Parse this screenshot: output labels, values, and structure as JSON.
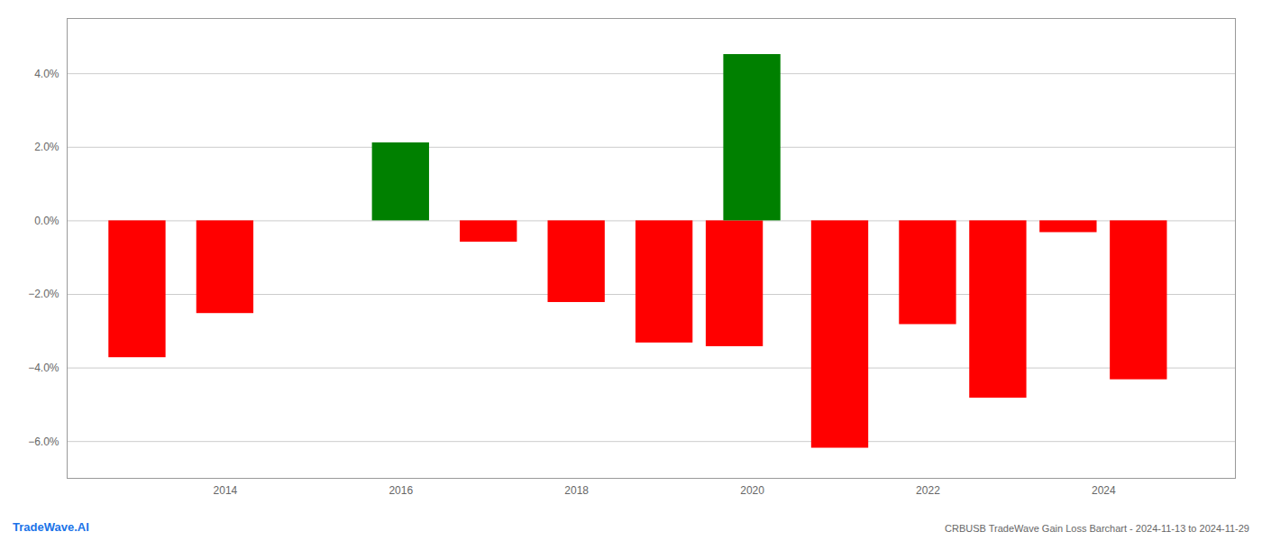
{
  "chart_data": {
    "type": "bar",
    "title": "CRBUSB TradeWave Gain Loss Barchart - 2024-11-13 to 2024-11-29",
    "annotations": [
      {
        "text": "TradeWave.AI",
        "color": "#1a73e8"
      }
    ],
    "x": [
      2013,
      2014,
      2016,
      2017,
      2018,
      2019,
      2019.8,
      2020,
      2021,
      2022,
      2022.8,
      2023.6,
      2024.4
    ],
    "values": [
      -3.72,
      -2.52,
      2.12,
      -0.58,
      -2.22,
      -3.32,
      -3.42,
      4.52,
      -6.18,
      -2.82,
      -4.82,
      -0.32,
      -4.32
    ],
    "colors": [
      "#ff0000",
      "#ff0000",
      "#008000",
      "#ff0000",
      "#ff0000",
      "#ff0000",
      "#ff0000",
      "#008000",
      "#ff0000",
      "#ff0000",
      "#ff0000",
      "#ff0000",
      "#ff0000"
    ],
    "xlim": [
      2012.2,
      2025.5
    ],
    "xticks": [
      2014,
      2016,
      2018,
      2020,
      2022,
      2024
    ],
    "ylim": [
      -7.0,
      5.5
    ],
    "yticks": [
      {
        "value": -6.0,
        "label": "−6.0%"
      },
      {
        "value": -4.0,
        "label": "−4.0%"
      },
      {
        "value": -2.0,
        "label": "−2.0%"
      },
      {
        "value": 0.0,
        "label": "0.0%"
      },
      {
        "value": 2.0,
        "label": "2.0%"
      },
      {
        "value": 4.0,
        "label": "4.0%"
      }
    ],
    "grid": true
  }
}
